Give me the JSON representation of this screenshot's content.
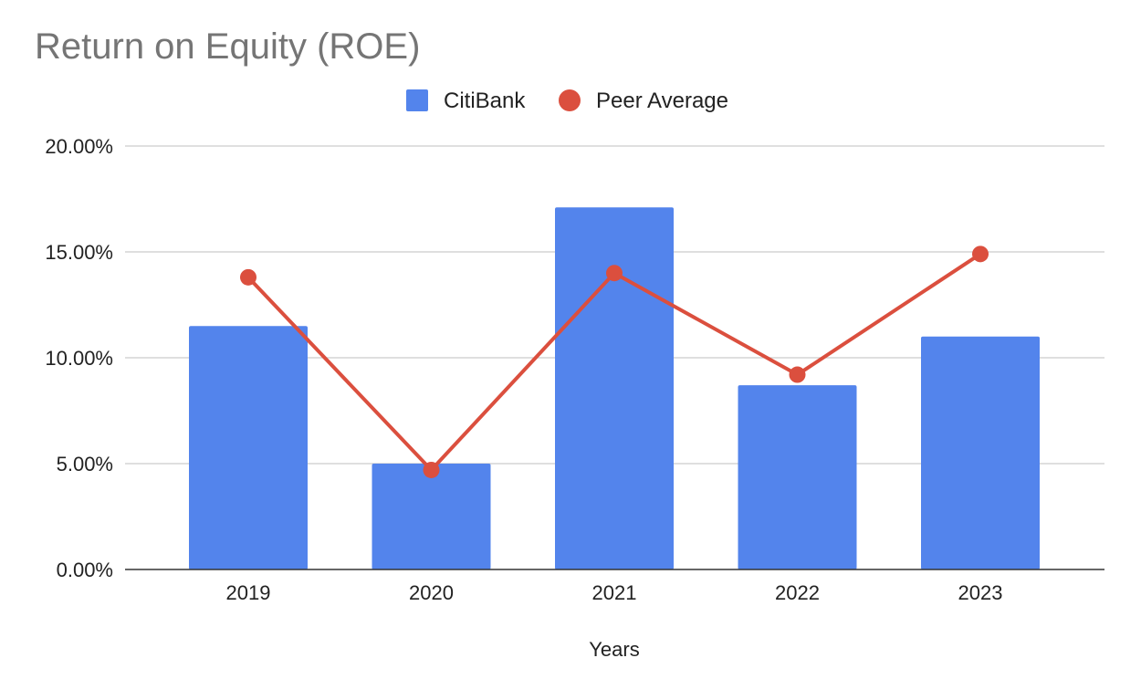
{
  "chart_data": {
    "type": "bar",
    "title": "Return on Equity (ROE)",
    "xlabel": "Years",
    "ylabel": "",
    "categories": [
      "2019",
      "2020",
      "2021",
      "2022",
      "2023"
    ],
    "series": [
      {
        "name": "CitiBank",
        "kind": "bar",
        "color": "#5384EC",
        "values": [
          11.5,
          5.0,
          17.1,
          8.7,
          11.0
        ]
      },
      {
        "name": "Peer Average",
        "kind": "line",
        "color": "#DB4F3E",
        "values": [
          13.8,
          4.7,
          14.0,
          9.2,
          14.9
        ]
      }
    ],
    "ylim": [
      0,
      20
    ],
    "yticks": [
      "0.00%",
      "5.00%",
      "10.00%",
      "15.00%",
      "20.00%"
    ],
    "grid": true,
    "legend": "top-center"
  }
}
